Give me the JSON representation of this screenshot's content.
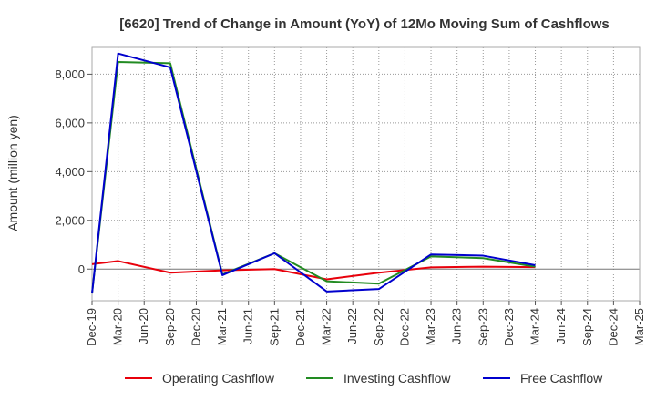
{
  "chart_data": {
    "type": "line",
    "title": "[6620]  Trend of Change in Amount (YoY) of 12Mo Moving Sum of Cashflows",
    "xlabel": "",
    "ylabel": "Amount (million yen)",
    "ylim": [
      -1300,
      9100
    ],
    "yticks": [
      0,
      2000,
      4000,
      6000,
      8000
    ],
    "ytick_labels": [
      "0",
      "2,000",
      "4,000",
      "6,000",
      "8,000"
    ],
    "categories": [
      "Dec-19",
      "Mar-20",
      "Jun-20",
      "Sep-20",
      "Dec-20",
      "Mar-21",
      "Jun-21",
      "Sep-21",
      "Dec-21",
      "Mar-22",
      "Jun-22",
      "Sep-22",
      "Dec-22",
      "Mar-23",
      "Jun-23",
      "Sep-23",
      "Dec-23",
      "Mar-24",
      "Jun-24",
      "Sep-24",
      "Dec-24",
      "Mar-25"
    ],
    "grid": true,
    "legend_position": "bottom",
    "series": [
      {
        "name": "Operating Cashflow",
        "color": "#e8000b",
        "values": [
          200,
          330,
          null,
          -150,
          null,
          -50,
          null,
          0,
          null,
          -420,
          null,
          -150,
          null,
          70,
          null,
          100,
          null,
          80,
          null,
          null,
          null,
          null
        ]
      },
      {
        "name": "Investing Cashflow",
        "color": "#228b22",
        "values": [
          -1000,
          8500,
          null,
          8450,
          null,
          -220,
          null,
          650,
          null,
          -500,
          null,
          -600,
          null,
          520,
          null,
          450,
          null,
          100,
          null,
          null,
          null,
          null
        ]
      },
      {
        "name": "Free Cashflow",
        "color": "#0000cd",
        "values": [
          -1000,
          8850,
          null,
          8280,
          null,
          -250,
          null,
          650,
          null,
          -920,
          null,
          -820,
          null,
          600,
          null,
          550,
          null,
          160,
          null,
          null,
          null,
          null
        ]
      }
    ]
  }
}
